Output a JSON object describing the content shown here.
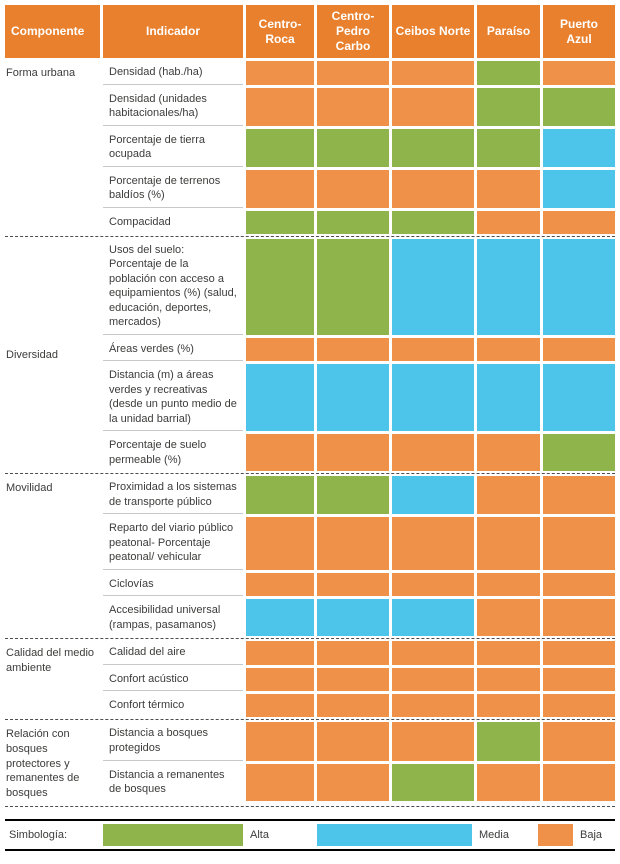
{
  "colors": {
    "header_bg": "#E8802E",
    "text": "#3C3C3B"
  },
  "header": {
    "component_label": "Componente",
    "indicator_label": "Indicador"
  },
  "chart_data": {
    "type": "heatmap",
    "columns": [
      "Centro-Roca",
      "Centro-Pedro Carbo",
      "Ceibos Norte",
      "Paraíso",
      "Puerto Azul"
    ],
    "scale": {
      "Alta": "#8FB44C",
      "Media": "#4DC5EB",
      "Baja": "#F0914A"
    },
    "legend_position": "bottom",
    "row_groups": [
      {
        "component": "Forma urbana",
        "label_valign": "top",
        "rows": [
          {
            "indicator": "Densidad (hab./ha)",
            "values": [
              "Baja",
              "Baja",
              "Baja",
              "Alta",
              "Baja"
            ]
          },
          {
            "indicator": "Densidad (unidades habitacionales/ha)",
            "values": [
              "Baja",
              "Baja",
              "Baja",
              "Alta",
              "Alta"
            ]
          },
          {
            "indicator": "Porcentaje de tierra ocupada",
            "values": [
              "Alta",
              "Alta",
              "Alta",
              "Alta",
              "Media"
            ]
          },
          {
            "indicator": "Porcentaje de terrenos baldíos (%)",
            "values": [
              "Baja",
              "Baja",
              "Baja",
              "Baja",
              "Media"
            ]
          },
          {
            "indicator": "Compacidad",
            "values": [
              "Alta",
              "Alta",
              "Alta",
              "Baja",
              "Baja"
            ]
          }
        ]
      },
      {
        "component": "Diversidad",
        "label_valign": "center",
        "rows": [
          {
            "indicator": "Usos del suelo: Porcentaje de la población con acceso a equipamientos (%) (salud, educación, deportes, mercados)",
            "values": [
              "Alta",
              "Alta",
              "Media",
              "Media",
              "Media"
            ]
          },
          {
            "indicator": "Áreas verdes (%)",
            "values": [
              "Baja",
              "Baja",
              "Baja",
              "Baja",
              "Baja"
            ]
          },
          {
            "indicator": "Distancia (m) a áreas verdes y recreativas (desde un punto medio de la unidad barrial)",
            "values": [
              "Media",
              "Media",
              "Media",
              "Media",
              "Media"
            ]
          },
          {
            "indicator": "Porcentaje de suelo permeable (%)",
            "values": [
              "Baja",
              "Baja",
              "Baja",
              "Baja",
              "Alta"
            ]
          }
        ]
      },
      {
        "component": "Movilidad",
        "label_valign": "top",
        "rows": [
          {
            "indicator": "Proximidad a los sistemas de transporte público",
            "values": [
              "Alta",
              "Alta",
              "Media",
              "Baja",
              "Baja"
            ]
          },
          {
            "indicator": "Reparto del viario público peatonal- Porcentaje peatonal/ vehicular",
            "values": [
              "Baja",
              "Baja",
              "Baja",
              "Baja",
              "Baja"
            ]
          },
          {
            "indicator": "Ciclovías",
            "values": [
              "Baja",
              "Baja",
              "Baja",
              "Baja",
              "Baja"
            ]
          },
          {
            "indicator": "Accesibilidad universal (rampas, pasamanos)",
            "values": [
              "Media",
              "Media",
              "Media",
              "Baja",
              "Baja"
            ]
          }
        ]
      },
      {
        "component": "Calidad del medio ambiente",
        "label_valign": "top",
        "rows": [
          {
            "indicator": "Calidad del aire",
            "values": [
              "Baja",
              "Baja",
              "Baja",
              "Baja",
              "Baja"
            ]
          },
          {
            "indicator": "Confort acústico",
            "values": [
              "Baja",
              "Baja",
              "Baja",
              "Baja",
              "Baja"
            ]
          },
          {
            "indicator": "Confort térmico",
            "values": [
              "Baja",
              "Baja",
              "Baja",
              "Baja",
              "Baja"
            ]
          }
        ]
      },
      {
        "component": "Relación con bosques protectores y remanentes de bosques",
        "label_valign": "top",
        "rows": [
          {
            "indicator": "Distancia a bosques protegidos",
            "values": [
              "Baja",
              "Baja",
              "Baja",
              "Alta",
              "Baja"
            ]
          },
          {
            "indicator": "Distancia a remanentes de bosques",
            "values": [
              "Baja",
              "Baja",
              "Alta",
              "Baja",
              "Baja"
            ]
          }
        ]
      }
    ]
  },
  "legend": {
    "label": "Simbología:",
    "items": [
      "Alta",
      "Media",
      "Baja"
    ]
  }
}
